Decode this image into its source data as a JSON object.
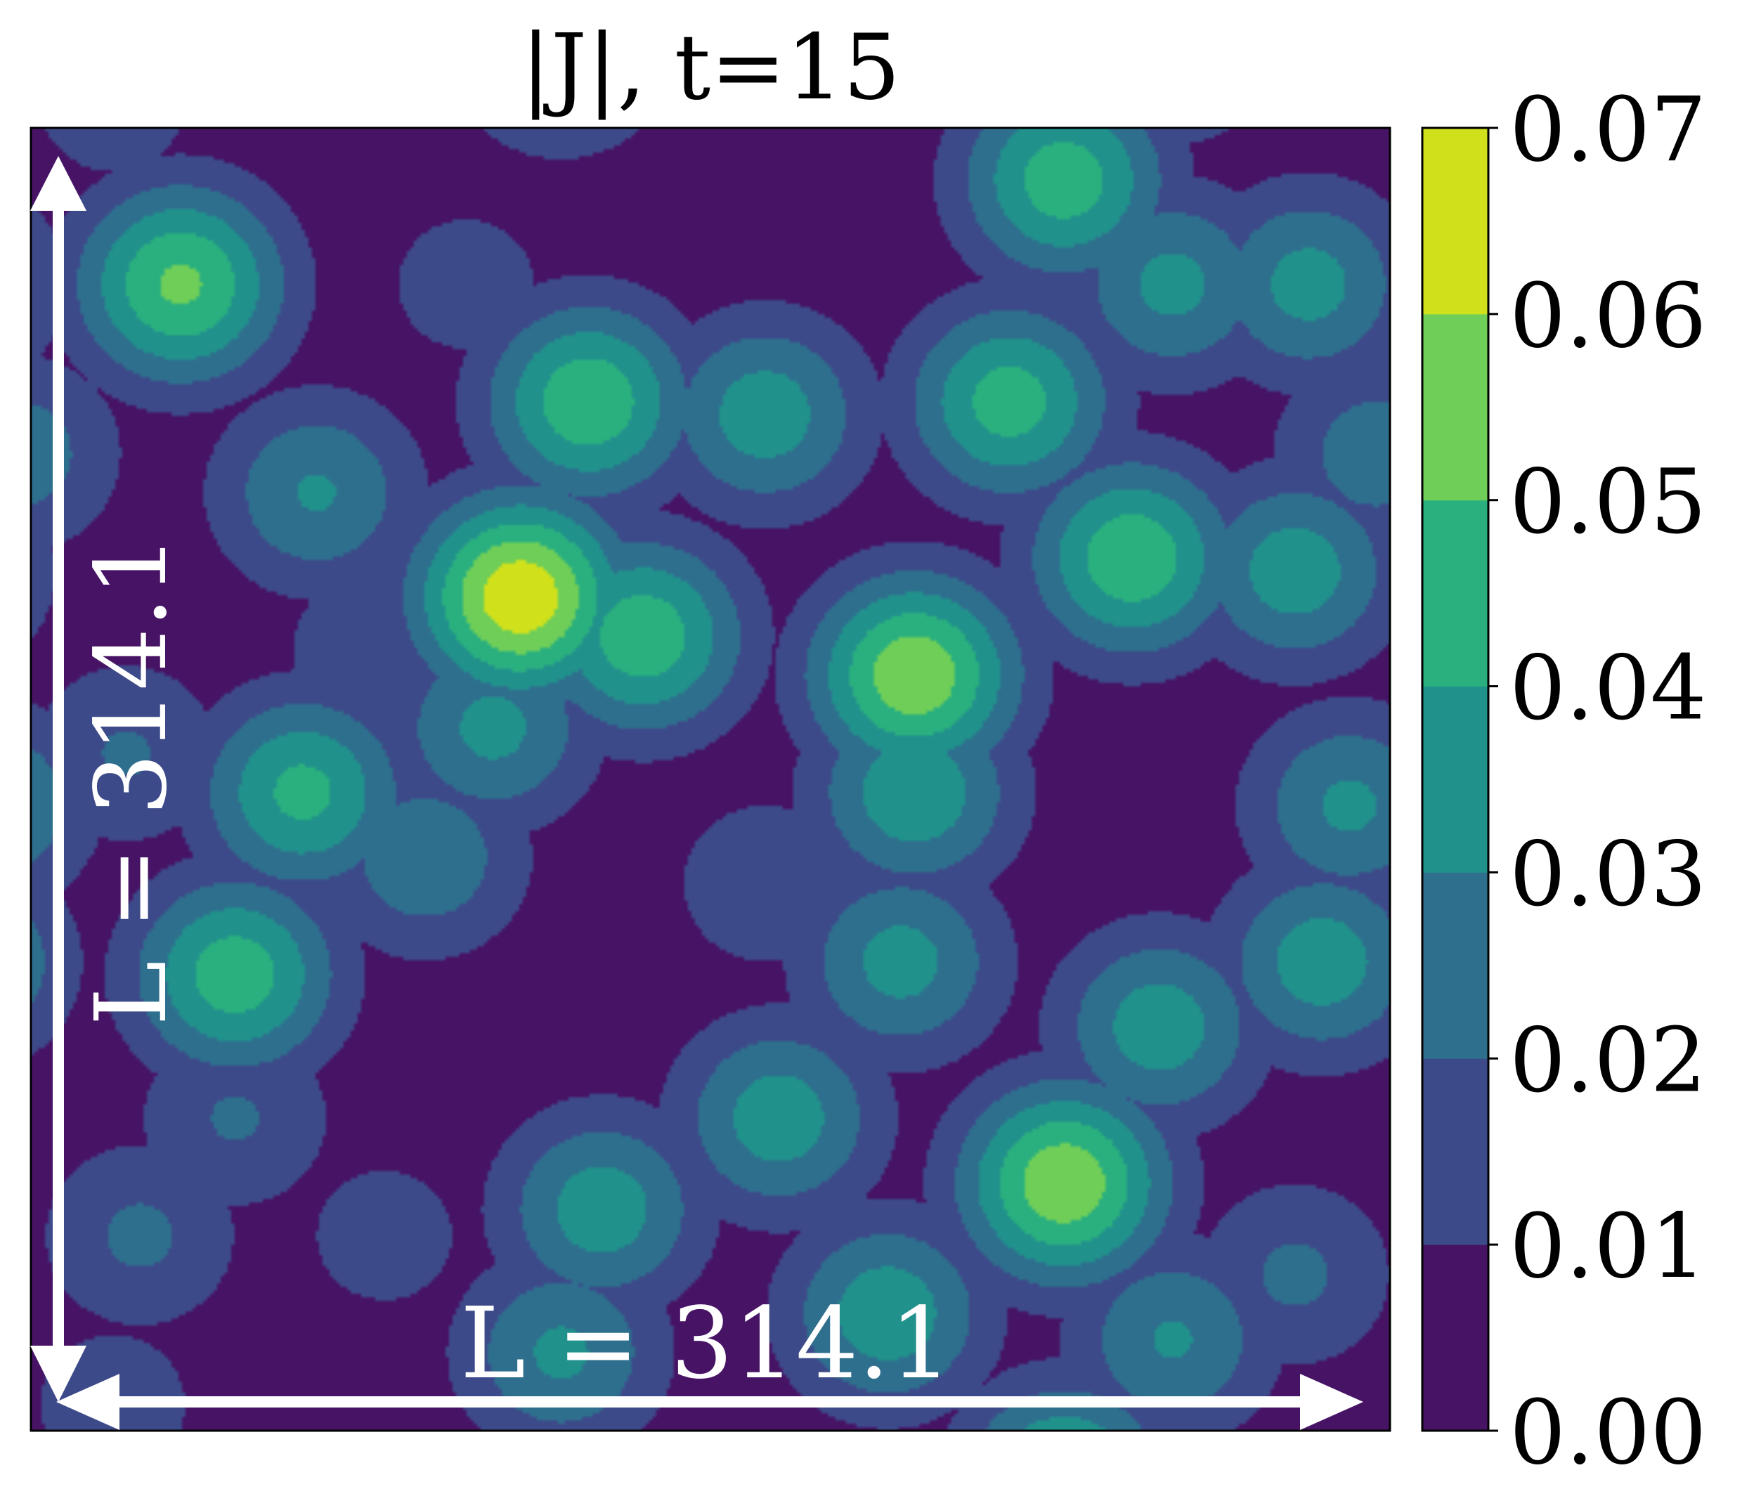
{
  "chart_data": {
    "type": "heatmap",
    "title": "|J|, t=15",
    "xlabel": "",
    "ylabel": "",
    "domain_length": 314.1,
    "annotations": {
      "horizontal": "L = 314.1",
      "vertical": "L = 314.1"
    },
    "colorbar": {
      "levels": [
        0.0,
        0.01,
        0.02,
        0.03,
        0.04,
        0.05,
        0.06,
        0.07
      ],
      "tick_labels": [
        "0.00",
        "0.01",
        "0.02",
        "0.03",
        "0.04",
        "0.05",
        "0.06",
        "0.07"
      ],
      "colors": [
        "#471365",
        "#3d4a89",
        "#2e6f8e",
        "#21918c",
        "#2ab07f",
        "#6ece58",
        "#d0e11c"
      ],
      "range": [
        0.0,
        0.07
      ]
    },
    "peaks": [
      {
        "x": 0.11,
        "y": 0.88,
        "value": 0.052
      },
      {
        "x": 0.36,
        "y": 0.64,
        "value": 0.068
      },
      {
        "x": 0.65,
        "y": 0.58,
        "value": 0.058
      },
      {
        "x": 0.76,
        "y": 0.19,
        "value": 0.058
      },
      {
        "x": 0.76,
        "y": 0.96,
        "value": 0.046
      },
      {
        "x": 0.81,
        "y": 0.67,
        "value": 0.048
      },
      {
        "x": 0.41,
        "y": 0.79,
        "value": 0.048
      },
      {
        "x": 0.45,
        "y": 0.61,
        "value": 0.047
      },
      {
        "x": 0.72,
        "y": 0.79,
        "value": 0.045
      },
      {
        "x": 0.2,
        "y": 0.49,
        "value": 0.043
      },
      {
        "x": 0.15,
        "y": 0.35,
        "value": 0.046
      },
      {
        "x": 0.54,
        "y": 0.78,
        "value": 0.036
      },
      {
        "x": 0.55,
        "y": 0.24,
        "value": 0.036
      },
      {
        "x": 0.65,
        "y": 0.49,
        "value": 0.038
      },
      {
        "x": 0.83,
        "y": 0.31,
        "value": 0.036
      },
      {
        "x": 0.93,
        "y": 0.66,
        "value": 0.036
      },
      {
        "x": 0.94,
        "y": 0.88,
        "value": 0.034
      },
      {
        "x": 0.95,
        "y": 0.36,
        "value": 0.036
      },
      {
        "x": 0.29,
        "y": 0.44,
        "value": 0.028
      },
      {
        "x": 0.34,
        "y": 0.54,
        "value": 0.033
      },
      {
        "x": 0.84,
        "y": 0.88,
        "value": 0.033
      },
      {
        "x": 0.21,
        "y": 0.72,
        "value": 0.031
      },
      {
        "x": 0.42,
        "y": 0.17,
        "value": 0.036
      },
      {
        "x": 0.15,
        "y": 0.24,
        "value": 0.021
      },
      {
        "x": 0.08,
        "y": 0.15,
        "value": 0.022
      },
      {
        "x": 0.39,
        "y": 0.06,
        "value": 0.032
      },
      {
        "x": 0.63,
        "y": 0.09,
        "value": 0.037
      },
      {
        "x": 0.84,
        "y": 0.07,
        "value": 0.031
      },
      {
        "x": 0.97,
        "y": 0.48,
        "value": 0.032
      },
      {
        "x": 0.64,
        "y": 0.36,
        "value": 0.034
      },
      {
        "x": 0.07,
        "y": 0.52,
        "value": 0.021
      },
      {
        "x": 0.54,
        "y": 0.42,
        "value": 0.018
      },
      {
        "x": 0.99,
        "y": 0.75,
        "value": 0.026
      },
      {
        "x": 0.93,
        "y": 0.12,
        "value": 0.022
      },
      {
        "x": 0.32,
        "y": 0.88,
        "value": 0.015
      },
      {
        "x": 0.25,
        "y": 0.6,
        "value": 0.017
      },
      {
        "x": 0.26,
        "y": 0.15,
        "value": 0.015
      },
      {
        "x": 0.06,
        "y": 0.02,
        "value": 0.016
      }
    ]
  }
}
